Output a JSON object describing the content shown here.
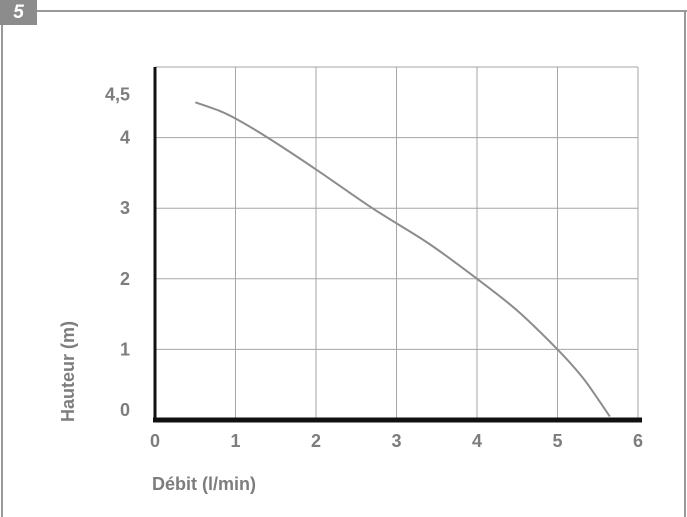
{
  "figure": {
    "number": "5"
  },
  "colors": {
    "frame": "#999999",
    "badge": "#8c8c8c",
    "grid": "#a6a6a6",
    "curve": "#8c8c8c",
    "axis": "#111111",
    "text": "#7d7d7d"
  },
  "chart_data": {
    "type": "line",
    "title": "",
    "xlabel": "Débit (l/min)",
    "ylabel": "Hauteur (m)",
    "xlim": [
      0,
      6
    ],
    "ylim": [
      0,
      5
    ],
    "x_ticks": [
      0,
      1,
      2,
      3,
      4,
      5,
      6
    ],
    "x_tick_labels": [
      "0",
      "1",
      "2",
      "3",
      "4",
      "5",
      "6"
    ],
    "y_ticks": [
      0,
      1,
      2,
      3,
      4,
      4.5
    ],
    "y_tick_labels": [
      "0",
      "1",
      "2",
      "3",
      "4",
      "4,5"
    ],
    "y_gridlines": [
      1,
      2,
      3,
      4,
      5
    ],
    "grid": true,
    "series": [
      {
        "x": [
          0.5,
          0.8,
          1.0,
          1.4,
          2.0,
          2.7,
          3.4,
          4.0,
          4.5,
          5.0,
          5.3,
          5.5,
          5.65
        ],
        "y": [
          4.5,
          4.38,
          4.27,
          4.0,
          3.55,
          3.0,
          2.5,
          2.0,
          1.55,
          1.0,
          0.62,
          0.3,
          0.05
        ]
      }
    ]
  }
}
